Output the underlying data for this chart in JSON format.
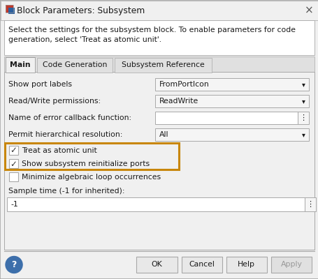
{
  "title": "Block Parameters: Subsystem",
  "description_line1": "Select the settings for the subsystem block. To enable parameters for code",
  "description_line2": "generation, select 'Treat as atomic unit'.",
  "tabs": [
    "Main",
    "Code Generation",
    "Subsystem Reference"
  ],
  "fields": [
    {
      "label": "Show port labels",
      "type": "dropdown",
      "value": "FromPortIcon"
    },
    {
      "label": "Read/Write permissions:",
      "type": "dropdown",
      "value": "ReadWrite"
    },
    {
      "label": "Name of error callback function:",
      "type": "text",
      "value": ""
    },
    {
      "label": "Permit hierarchical resolution:",
      "type": "dropdown",
      "value": "All"
    }
  ],
  "checkboxes": [
    {
      "label": "Treat as atomic unit",
      "checked": true,
      "highlighted": true
    },
    {
      "label": "Show subsystem reinitialize ports",
      "checked": true,
      "highlighted": true
    },
    {
      "label": "Minimize algebraic loop occurrences",
      "checked": false,
      "highlighted": false
    }
  ],
  "sample_time_label": "Sample time (-1 for inherited):",
  "sample_time_value": "-1",
  "buttons": [
    "OK",
    "Cancel",
    "Help",
    "Apply"
  ],
  "highlight_color": "#C8860A",
  "bg_outer": "#F0F0F0",
  "bg_dialog": "#F0F0F0",
  "bg_white": "#FFFFFF",
  "bg_titlebar": "#F0F0F0",
  "bg_tab_active": "#F0F0F0",
  "bg_tab_inactive": "#E0E0E0",
  "bg_dropdown": "#F5F5F5",
  "bg_button": "#E8E8E8",
  "color_border": "#A8A8A8",
  "color_border_dark": "#888888",
  "color_text": "#1A1A1A",
  "color_text_gray": "#888888",
  "color_x": "#555555",
  "color_help_bg": "#3D6FAB",
  "color_apply_text": "#999999",
  "figw": 4.56,
  "figh": 4.0,
  "dpi": 100
}
